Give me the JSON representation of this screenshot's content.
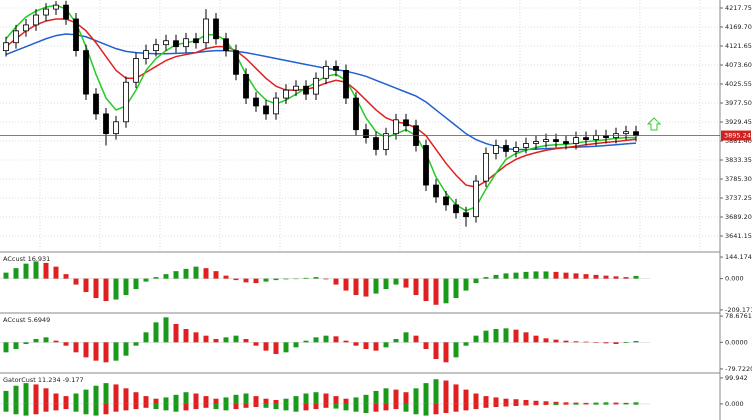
{
  "chart_data": [
    {
      "type": "candlestick",
      "open": [
        4110,
        4130,
        4160,
        4175,
        4200,
        4215,
        4225,
        4190,
        4110,
        4000,
        3950,
        3900,
        3930,
        4030,
        4090,
        4110,
        4125,
        4135,
        4120,
        4140,
        4130,
        4190,
        4140,
        4110,
        4050,
        3990,
        3970,
        3950,
        3990,
        4010,
        4020,
        4000,
        4040,
        4070,
        4060,
        3990,
        3910,
        3890,
        3860,
        3900,
        3935,
        3920,
        3870,
        3770,
        3740,
        3720,
        3700,
        3690,
        3780,
        3850,
        3870,
        3855,
        3865,
        3875,
        3880,
        3885,
        3880,
        3875,
        3890,
        3885,
        3895,
        3890,
        3900,
        3905
      ],
      "high": [
        4145,
        4175,
        4190,
        4215,
        4230,
        4235,
        4236,
        4205,
        4125,
        4015,
        3965,
        3945,
        4045,
        4105,
        4125,
        4140,
        4150,
        4150,
        4155,
        4155,
        4215,
        4205,
        4155,
        4125,
        4065,
        4005,
        3985,
        4005,
        4025,
        4035,
        4035,
        4055,
        4085,
        4085,
        4075,
        4005,
        3925,
        3905,
        3915,
        3950,
        3950,
        3935,
        3885,
        3785,
        3755,
        3735,
        3715,
        3795,
        3865,
        3885,
        3885,
        3880,
        3890,
        3895,
        3900,
        3900,
        3895,
        3905,
        3905,
        3910,
        3910,
        3915,
        3920,
        3920
      ],
      "low": [
        4095,
        4115,
        4145,
        4160,
        4185,
        4200,
        4175,
        4095,
        3985,
        3935,
        3870,
        3885,
        3915,
        4015,
        4075,
        4095,
        4110,
        4105,
        4105,
        4115,
        4115,
        4125,
        4095,
        4035,
        3975,
        3955,
        3935,
        3935,
        3975,
        3995,
        3985,
        3985,
        4025,
        4045,
        3975,
        3895,
        3875,
        3845,
        3845,
        3885,
        3905,
        3855,
        3755,
        3725,
        3705,
        3685,
        3665,
        3675,
        3765,
        3835,
        3840,
        3840,
        3850,
        3860,
        3865,
        3865,
        3860,
        3860,
        3870,
        3870,
        3875,
        3875,
        3885,
        3880
      ],
      "close": [
        4130,
        4160,
        4175,
        4200,
        4215,
        4225,
        4190,
        4110,
        4000,
        3950,
        3900,
        3930,
        4030,
        4090,
        4110,
        4125,
        4135,
        4120,
        4140,
        4130,
        4190,
        4140,
        4110,
        4050,
        3990,
        3970,
        3950,
        3990,
        4010,
        4020,
        4000,
        4040,
        4070,
        4060,
        3990,
        3910,
        3890,
        3860,
        3900,
        3935,
        3920,
        3870,
        3770,
        3740,
        3720,
        3700,
        3690,
        3780,
        3850,
        3870,
        3855,
        3865,
        3875,
        3880,
        3885,
        3880,
        3875,
        3890,
        3885,
        3895,
        3890,
        3900,
        3905,
        3895
      ],
      "series": [
        {
          "color": "#2060d0",
          "values": [
            4100,
            4110,
            4120,
            4130,
            4140,
            4148,
            4152,
            4150,
            4145,
            4135,
            4125,
            4115,
            4108,
            4105,
            4103,
            4102,
            4102,
            4103,
            4104,
            4105,
            4108,
            4110,
            4110,
            4108,
            4105,
            4100,
            4095,
            4090,
            4085,
            4080,
            4075,
            4070,
            4065,
            4062,
            4058,
            4052,
            4045,
            4035,
            4025,
            4015,
            4005,
            3995,
            3980,
            3960,
            3940,
            3920,
            3900,
            3885,
            3875,
            3868,
            3862,
            3860,
            3860,
            3861,
            3862,
            3863,
            3865,
            3866,
            3867,
            3868,
            3870,
            3872,
            3874,
            3876
          ]
        },
        {
          "color": "#e02020",
          "values": [
            4120,
            4140,
            4160,
            4175,
            4185,
            4190,
            4190,
            4180,
            4160,
            4130,
            4095,
            4060,
            4040,
            4040,
            4055,
            4070,
            4085,
            4095,
            4100,
            4105,
            4115,
            4120,
            4120,
            4110,
            4090,
            4065,
            4040,
            4020,
            4010,
            4010,
            4012,
            4018,
            4028,
            4035,
            4030,
            4010,
            3985,
            3960,
            3940,
            3930,
            3925,
            3915,
            3895,
            3860,
            3825,
            3795,
            3770,
            3765,
            3780,
            3800,
            3820,
            3835,
            3845,
            3852,
            3858,
            3862,
            3865,
            3868,
            3872,
            3875,
            3878,
            3880,
            3883,
            3886
          ]
        },
        {
          "color": "#22cc22",
          "values": [
            4140,
            4170,
            4195,
            4210,
            4220,
            4225,
            4215,
            4180,
            4120,
            4050,
            3990,
            3960,
            3970,
            4010,
            4060,
            4090,
            4110,
            4125,
            4130,
            4135,
            4150,
            4150,
            4135,
            4100,
            4050,
            4010,
            3985,
            3975,
            3985,
            4000,
            4015,
            4030,
            4045,
            4050,
            4035,
            3990,
            3940,
            3905,
            3890,
            3900,
            3910,
            3895,
            3850,
            3790,
            3750,
            3720,
            3705,
            3715,
            3760,
            3800,
            3835,
            3850,
            3858,
            3865,
            3870,
            3872,
            3873,
            3876,
            3880,
            3882,
            3885,
            3888,
            3890,
            3890
          ]
        }
      ],
      "current_price": 3895.24,
      "price_line_color": "#d02020",
      "ylim": [
        3600.7,
        4238.0
      ],
      "yticks": [
        4217.75,
        {
          "value": 4169.7,
          "label": "4169.70"
        },
        4121.65,
        {
          "value": 4073.6,
          "label": "4073.60"
        },
        4025.55,
        {
          "value": 3977.5,
          "label": "3977.50"
        },
        3929.45,
        {
          "value": 3881.4,
          "label": "3881.40"
        },
        3833.35,
        {
          "value": 3785.3,
          "label": "3785.30"
        },
        3737.25,
        {
          "value": 3689.2,
          "label": "3689.20"
        },
        3641.15
      ],
      "grid": true
    },
    {
      "type": "histogram",
      "title": "ACcust 16.931",
      "up_color": "#1a9a1a",
      "down_color": "#e02020",
      "values": [
        40,
        70,
        100,
        115,
        105,
        80,
        30,
        -40,
        -90,
        -130,
        -150,
        -140,
        -110,
        -70,
        -20,
        10,
        30,
        50,
        65,
        80,
        70,
        50,
        20,
        -10,
        -25,
        -30,
        -20,
        -10,
        -5,
        0,
        5,
        10,
        -5,
        -40,
        -80,
        -110,
        -120,
        -100,
        -70,
        -40,
        -60,
        -110,
        -150,
        -175,
        -165,
        -130,
        -80,
        -30,
        10,
        25,
        35,
        40,
        45,
        48,
        48,
        45,
        40,
        35,
        30,
        25,
        20,
        15,
        10,
        18
      ],
      "ylim": [
        -230,
        178
      ],
      "yticks": [
        144.174,
        {
          "value": 0,
          "label": "0.000"
        },
        -209.171
      ]
    },
    {
      "type": "histogram",
      "title": "ACcust 5.6949",
      "up_color": "#1a9a1a",
      "down_color": "#e02020",
      "values": [
        -30,
        -20,
        -5,
        10,
        15,
        5,
        -10,
        -30,
        -45,
        -55,
        -60,
        -55,
        -40,
        -10,
        30,
        60,
        75,
        55,
        40,
        30,
        20,
        10,
        15,
        20,
        10,
        -10,
        -25,
        -35,
        -30,
        -15,
        5,
        15,
        20,
        18,
        5,
        -10,
        -20,
        -25,
        -15,
        10,
        30,
        20,
        -20,
        -50,
        -60,
        -45,
        -10,
        20,
        35,
        40,
        42,
        38,
        30,
        20,
        12,
        8,
        5,
        3,
        2,
        0,
        -3,
        -5,
        -2,
        4
      ],
      "ylim": [
        -92,
        88
      ],
      "yticks": [
        78.6761,
        {
          "value": 0,
          "label": "0.0000"
        },
        {
          "value": -79.722,
          "label": "-79.7220"
        }
      ]
    },
    {
      "type": "gator",
      "title": "GatorCust 11.234 -9.177",
      "up_color": "#1a9a1a",
      "down_color": "#e02020",
      "series": [
        {
          "values": [
            50,
            70,
            80,
            75,
            60,
            40,
            30,
            40,
            55,
            70,
            80,
            75,
            60,
            45,
            30,
            20,
            25,
            35,
            45,
            40,
            30,
            20,
            25,
            35,
            40,
            30,
            20,
            15,
            20,
            30,
            40,
            45,
            40,
            30,
            20,
            25,
            35,
            50,
            60,
            55,
            45,
            60,
            80,
            95,
            90,
            75,
            55,
            40,
            30,
            25,
            20,
            18,
            15,
            12,
            10,
            8,
            6,
            5,
            4,
            5,
            6,
            5,
            4,
            6
          ]
        },
        {
          "values": [
            -30,
            -40,
            -45,
            -40,
            -30,
            -25,
            -20,
            -30,
            -40,
            -45,
            -40,
            -30,
            -25,
            -20,
            -15,
            -20,
            -25,
            -30,
            -25,
            -20,
            -15,
            -20,
            -25,
            -20,
            -15,
            -12,
            -15,
            -20,
            -25,
            -30,
            -25,
            -20,
            -15,
            -18,
            -25,
            -30,
            -35,
            -30,
            -25,
            -20,
            -30,
            -40,
            -45,
            -40,
            -35,
            -30,
            -25,
            -20,
            -15,
            -12,
            -10,
            -8,
            -6,
            -5,
            -4,
            -4,
            -3,
            -3,
            -2,
            -3,
            -3,
            -2,
            -2,
            -3
          ]
        }
      ],
      "ylim": [
        -62,
        119
      ],
      "yticks": [
        99.942,
        {
          "value": 0,
          "label": "0.000"
        }
      ]
    }
  ]
}
